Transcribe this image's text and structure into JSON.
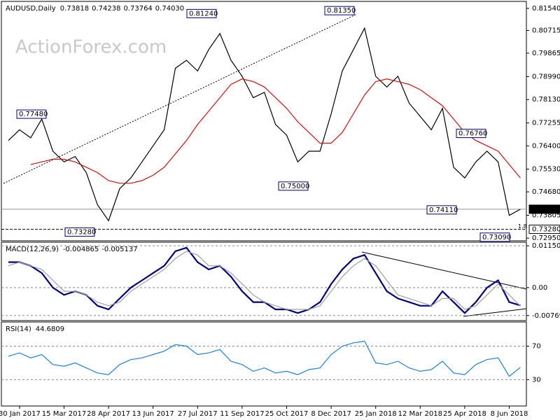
{
  "chart_data": [
    {
      "type": "line",
      "title": "AUDUSD,Daily",
      "ohlc": [
        0.73818,
        0.74238,
        0.73764,
        0.7403
      ],
      "ohlc_labels": [
        "0.73818",
        "0.74238",
        "0.73764",
        "0.74030"
      ],
      "watermark": "ActionForex.com",
      "ylim": [
        0.7285,
        0.818
      ],
      "yticks": [
        {
          "value": 0.8154,
          "label": "0.81540"
        },
        0.80715,
        0.79865,
        {
          "value": 0.7899,
          "label": "0.78990"
        },
        {
          "value": 0.7813,
          "label": "0.78130"
        },
        0.77255,
        {
          "value": 0.764,
          "label": "0.76400"
        },
        {
          "value": 0.7553,
          "label": "0.75530"
        },
        {
          "value": 0.7468,
          "label": "0.74680"
        },
        0.73805,
        {
          "value": 0.7295,
          "label": "0.72950"
        }
      ],
      "price_markers": [
        {
          "value": 0.7403,
          "label": "0.74030"
        },
        {
          "value": 0.7328,
          "label": "0.73280"
        }
      ],
      "annotations": [
        {
          "value": 0.7748,
          "label": "0.77480"
        },
        {
          "value": 0.7328,
          "label": "0.73280"
        },
        {
          "value": 0.8124,
          "label": "0.81240"
        },
        {
          "value": 0.75,
          "label": "0.75000"
        },
        {
          "value": 0.8135,
          "label": "0.81350"
        },
        {
          "value": 0.7411,
          "label": "0.74110"
        },
        {
          "value": 0.7676,
          "label": "0.76760"
        },
        {
          "value": 0.7309,
          "label": "0.73090"
        }
      ],
      "fib_label": "1.8",
      "series": [
        {
          "color": "#000000",
          "values": [
            0.766,
            0.77,
            0.767,
            0.774,
            0.762,
            0.758,
            0.76,
            0.754,
            0.742,
            0.736,
            0.748,
            0.752,
            0.758,
            0.764,
            0.77,
            0.793,
            0.796,
            0.792,
            0.8,
            0.806,
            0.796,
            0.79,
            0.782,
            0.784,
            0.772,
            0.768,
            0.758,
            0.762,
            0.762,
            0.776,
            0.792,
            0.8,
            0.808,
            0.79,
            0.786,
            0.79,
            0.78,
            0.775,
            0.77,
            0.778,
            0.756,
            0.752,
            0.758,
            0.762,
            0.758,
            0.738,
            0.7403
          ]
        },
        {
          "color": "#d01010",
          "values": [
            null,
            null,
            0.757,
            0.758,
            0.759,
            0.759,
            0.758,
            0.756,
            0.754,
            0.751,
            0.75,
            0.75,
            0.751,
            0.753,
            0.756,
            0.761,
            0.766,
            0.772,
            0.777,
            0.782,
            0.787,
            0.789,
            0.788,
            0.786,
            0.782,
            0.778,
            0.773,
            0.769,
            0.765,
            0.765,
            0.769,
            0.776,
            0.783,
            0.788,
            0.789,
            0.788,
            0.787,
            0.785,
            0.782,
            0.779,
            0.774,
            0.769,
            0.766,
            0.764,
            0.762,
            0.757,
            0.752
          ]
        }
      ]
    },
    {
      "type": "line",
      "title": "MACD(12,26,9)",
      "header_values": [
        -0.004865,
        -0.005137
      ],
      "ylim": [
        -0.00908,
        0.0125
      ],
      "yticks": [
        0.011508,
        {
          "value": 0,
          "label": "0.00"
        },
        -0.007694
      ],
      "series": [
        {
          "color": "#000080",
          "values": [
            0.007,
            0.007,
            0.006,
            0.004,
            0.0,
            -0.002,
            -0.001,
            -0.002,
            -0.005,
            -0.006,
            -0.003,
            0.0,
            0.002,
            0.004,
            0.006,
            0.01,
            0.011,
            0.007,
            0.005,
            0.006,
            0.003,
            -0.001,
            -0.004,
            -0.004,
            -0.006,
            -0.006,
            -0.007,
            -0.006,
            -0.004,
            0.001,
            0.005,
            0.008,
            0.009,
            0.004,
            -0.001,
            -0.003,
            -0.004,
            -0.005,
            -0.005,
            -0.001,
            -0.004,
            -0.007,
            -0.004,
            0.0,
            0.002,
            -0.004,
            -0.0049
          ]
        },
        {
          "color": "#a0a0a0",
          "values": [
            0.006,
            0.007,
            0.006,
            0.005,
            0.002,
            -0.001,
            -0.001,
            -0.002,
            -0.004,
            -0.005,
            -0.004,
            -0.001,
            0.001,
            0.003,
            0.005,
            0.008,
            0.01,
            0.009,
            0.006,
            0.006,
            0.004,
            0.001,
            -0.002,
            -0.004,
            -0.005,
            -0.006,
            -0.006,
            -0.006,
            -0.005,
            -0.001,
            0.003,
            0.006,
            0.008,
            0.006,
            0.002,
            -0.002,
            -0.003,
            -0.004,
            -0.005,
            -0.003,
            -0.003,
            -0.006,
            -0.005,
            -0.002,
            0.001,
            -0.002,
            -0.0051
          ]
        }
      ]
    },
    {
      "type": "line",
      "title": "RSI(14)",
      "header_values": [
        44.6809
      ],
      "ylim": [
        -1.5,
        98.9
      ],
      "yticks": [
        70,
        30
      ],
      "categories": [
        null,
        "30 Jan 2017",
        null,
        null,
        null,
        "15 Mar 2017",
        null,
        null,
        null,
        "28 Apr 2017",
        null,
        null,
        null,
        "13 Jun 2017",
        null,
        null,
        null,
        "27 Jul 2017",
        null,
        null,
        null,
        "11 Sep 2017",
        null,
        null,
        null,
        "25 Oct 2017",
        null,
        null,
        null,
        "8 Dec 2017",
        null,
        null,
        null,
        "25 Jan 2018",
        null,
        null,
        null,
        "12 Mar 2018",
        null,
        null,
        null,
        "25 Apr 2018",
        null,
        null,
        null,
        "8 Jun 2018",
        null
      ],
      "series": [
        {
          "color": "#1e7fe0",
          "values": [
            58,
            62,
            56,
            60,
            48,
            46,
            50,
            44,
            38,
            36,
            48,
            54,
            56,
            60,
            64,
            72,
            70,
            60,
            62,
            66,
            52,
            48,
            40,
            44,
            38,
            40,
            36,
            42,
            44,
            60,
            70,
            74,
            76,
            50,
            48,
            52,
            44,
            40,
            42,
            52,
            38,
            36,
            48,
            54,
            56,
            34,
            44.68
          ]
        }
      ]
    }
  ]
}
